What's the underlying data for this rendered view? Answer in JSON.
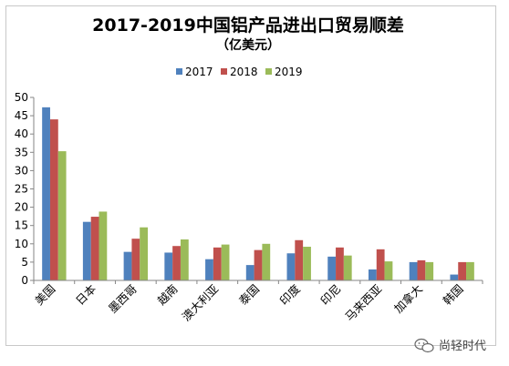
{
  "chart_data": {
    "type": "bar",
    "title": "2017-2019中国铝产品进出口贸易顺差",
    "subtitle": "（亿美元）",
    "categories": [
      "美国",
      "日本",
      "墨西哥",
      "越南",
      "澳大利亚",
      "泰国",
      "印度",
      "印尼",
      "马来西亚",
      "加拿大",
      "韩国"
    ],
    "series": [
      {
        "name": "2017",
        "color": "#4f81bd",
        "values": [
          47.3,
          16.0,
          7.8,
          7.6,
          5.8,
          4.2,
          7.4,
          6.5,
          3.0,
          5.0,
          1.6
        ]
      },
      {
        "name": "2018",
        "color": "#c0504d",
        "values": [
          44.0,
          17.4,
          11.4,
          9.4,
          9.0,
          8.3,
          11.0,
          9.0,
          8.5,
          5.5,
          5.0
        ]
      },
      {
        "name": "2019",
        "color": "#9bbb59",
        "values": [
          35.3,
          18.8,
          14.5,
          11.2,
          9.8,
          10.0,
          9.2,
          6.8,
          5.2,
          5.0,
          5.0
        ]
      }
    ],
    "ylim": [
      0,
      50
    ],
    "yticks": [
      0,
      5,
      10,
      15,
      20,
      25,
      30,
      35,
      40,
      45,
      50
    ],
    "legend_position": "top-center",
    "grid": false
  },
  "watermark": {
    "text": "尚轻时代",
    "icon": "wechat-icon"
  }
}
